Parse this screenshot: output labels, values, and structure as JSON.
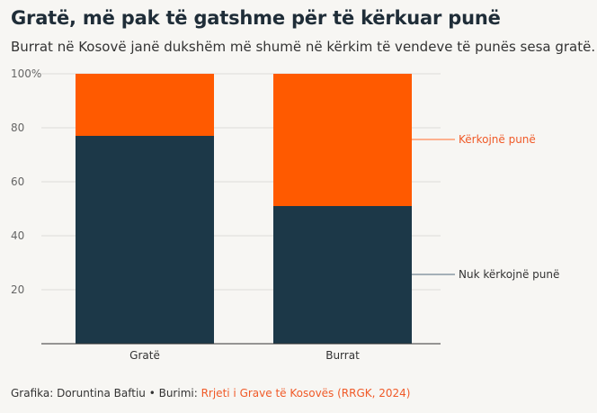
{
  "title": "Gratë, më pak të gatshme për të kërkuar punë",
  "subtitle": "Burrat në Kosovë janë dukshëm më shumë në kërkim të vendeve të punës sesa gratë.",
  "footer": {
    "credit_label": "Grafika: Doruntina Baftiu • Burimi: ",
    "source_label": "Rrjeti i Grave të Kosovës (RRGK, 2024)"
  },
  "chart_data": {
    "type": "bar",
    "stacked": true,
    "categories": [
      "Gratë",
      "Burrat"
    ],
    "series": [
      {
        "name": "Nuk kërkojnë punë",
        "values": [
          77,
          51
        ],
        "color": "#1c3848"
      },
      {
        "name": "Kërkojnë punë",
        "values": [
          23,
          49
        ],
        "color": "#ff5a00"
      }
    ],
    "ylim": [
      0,
      100
    ],
    "y_ticks": [
      "",
      "20",
      "40",
      "60",
      "80",
      "100%"
    ],
    "grid": true,
    "legend": "direct labels right"
  }
}
